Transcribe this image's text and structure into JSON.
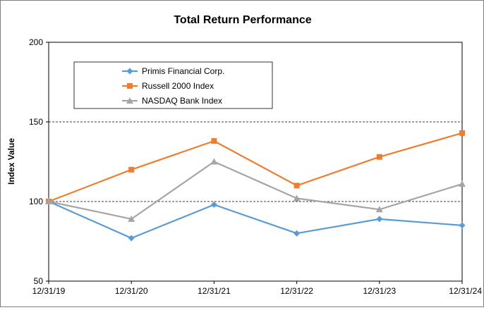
{
  "chart_data": {
    "type": "line",
    "title": "Total Return Performance",
    "xlabel": "",
    "ylabel": "Index Value",
    "categories": [
      "12/31/19",
      "12/31/20",
      "12/31/21",
      "12/31/22",
      "12/31/23",
      "12/31/24"
    ],
    "y_ticks": [
      50,
      100,
      150,
      200
    ],
    "ylim": [
      50,
      200
    ],
    "grid": "horizontal dashed at 100 and 150",
    "legend_position": "top-left inside plot",
    "series": [
      {
        "name": "Primis Financial Corp.",
        "color": "#5b9bd5",
        "marker": "diamond",
        "values": [
          100,
          77,
          98,
          80,
          89,
          85
        ]
      },
      {
        "name": "Russell 2000 Index",
        "color": "#ed7d31",
        "marker": "square",
        "values": [
          100,
          120,
          138,
          110,
          128,
          143
        ]
      },
      {
        "name": "NASDAQ Bank Index",
        "color": "#a5a5a5",
        "marker": "triangle",
        "values": [
          100,
          89,
          125,
          102,
          95,
          111
        ]
      }
    ]
  }
}
